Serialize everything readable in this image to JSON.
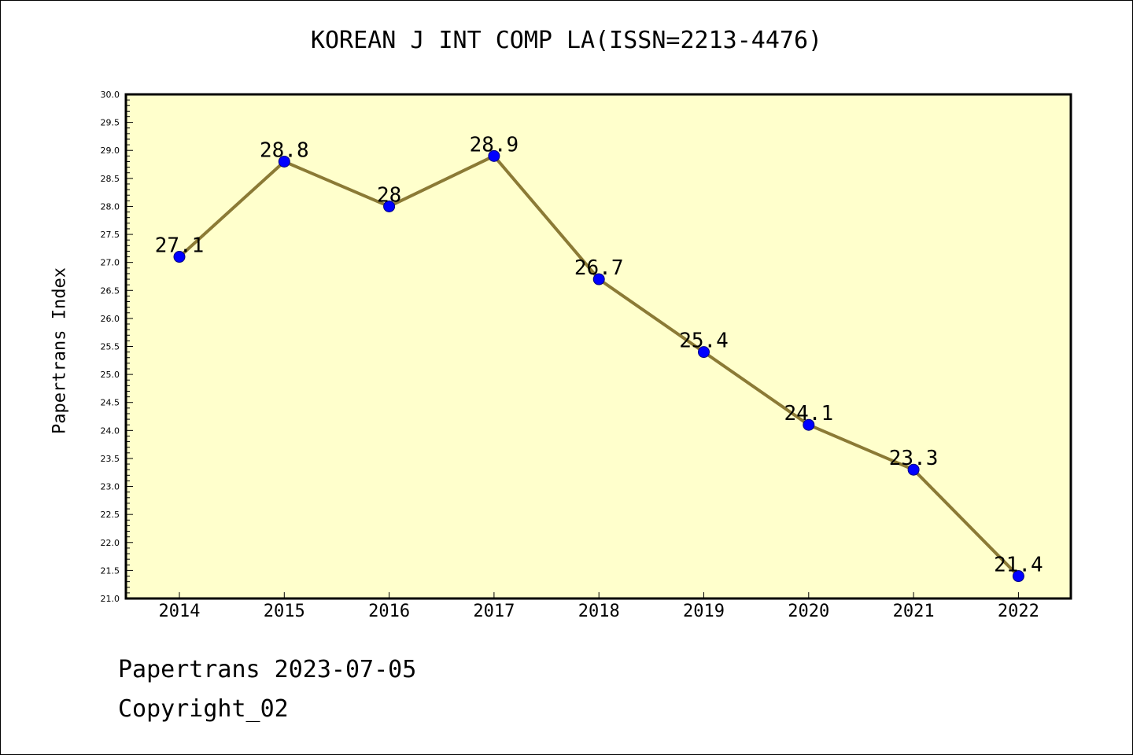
{
  "chart_data": {
    "type": "line",
    "title": "KOREAN J INT COMP LA(ISSN=2213-4476)",
    "ylabel": "Papertrans Index",
    "xlabel": "",
    "categories": [
      "2014",
      "2015",
      "2016",
      "2017",
      "2018",
      "2019",
      "2020",
      "2021",
      "2022"
    ],
    "values": [
      27.1,
      28.8,
      28.0,
      28.9,
      26.7,
      25.4,
      24.1,
      23.3,
      21.4
    ],
    "data_labels": [
      "27.1",
      "28.8",
      "28",
      "28.9",
      "26.7",
      "25.4",
      "24.1",
      "23.3",
      "21.4"
    ],
    "ylim": [
      21.0,
      30.0
    ],
    "y_ticks": [
      "21.0",
      "21.5",
      "22.0",
      "22.5",
      "23.0",
      "23.5",
      "24.0",
      "24.5",
      "25.0",
      "25.5",
      "26.0",
      "26.5",
      "27.0",
      "27.5",
      "28.0",
      "28.5",
      "29.0",
      "29.5",
      "30.0"
    ],
    "grid": false,
    "legend": "none",
    "colors": {
      "plot_background": "#ffffcc",
      "line": "#8b7a35",
      "marker": "#0000ff",
      "marker_edge": "#000080"
    }
  },
  "footer": {
    "date_line": "Papertrans 2023-07-05",
    "copyright_line": "Copyright_02"
  }
}
